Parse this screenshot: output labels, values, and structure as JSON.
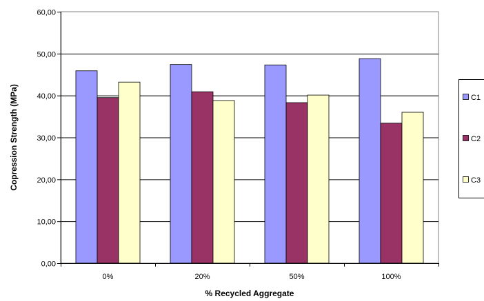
{
  "chart_data": {
    "type": "bar",
    "title": "",
    "xlabel": "% Recycled Aggregate",
    "ylabel": "Copression Strength (MPa)",
    "categories": [
      "0%",
      "20%",
      "50%",
      "100%"
    ],
    "ylim": [
      0,
      60
    ],
    "yticks": [
      "0,00",
      "10,00",
      "20,00",
      "30,00",
      "40,00",
      "50,00",
      "60,00"
    ],
    "grid": true,
    "legend_position": "right",
    "series": [
      {
        "name": "C1",
        "color": "#9999ff",
        "values": [
          45.9,
          47.4,
          47.3,
          48.8
        ]
      },
      {
        "name": "C2",
        "color": "#993366",
        "values": [
          39.5,
          40.9,
          38.3,
          33.4
        ]
      },
      {
        "name": "C3",
        "color": "#ffffcc",
        "values": [
          43.2,
          38.8,
          40.1,
          36.0
        ]
      }
    ]
  }
}
